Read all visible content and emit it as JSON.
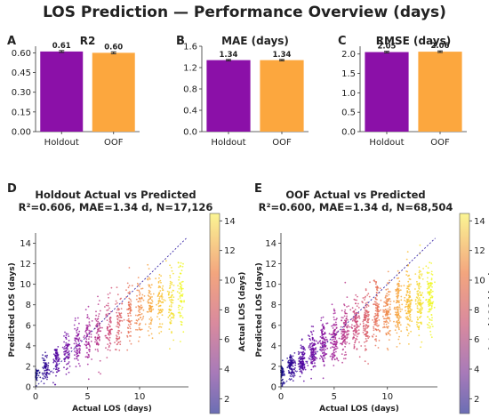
{
  "title": "LOS Prediction — Performance Overview (days)",
  "chart_data": [
    {
      "panel": "A",
      "type": "bar",
      "title": "R2",
      "categories": [
        "Holdout",
        "OOF"
      ],
      "values": [
        0.61,
        0.6
      ],
      "value_labels": [
        "0.61",
        "0.60"
      ],
      "error": [
        0.007,
        0.007
      ],
      "colors": [
        "#8b10a8",
        "#fca73e"
      ],
      "ylim": [
        0,
        0.65
      ],
      "yticks": [
        0.0,
        0.15,
        0.3,
        0.45,
        0.6
      ],
      "ytick_labels": [
        "0.00",
        "0.15",
        "0.30",
        "0.45",
        "0.60"
      ]
    },
    {
      "panel": "B",
      "type": "bar",
      "title": "MAE (days)",
      "categories": [
        "Holdout",
        "OOF"
      ],
      "values": [
        1.34,
        1.34
      ],
      "value_labels": [
        "1.34",
        "1.34"
      ],
      "error": [
        0.012,
        0.012
      ],
      "colors": [
        "#8b10a8",
        "#fca73e"
      ],
      "ylim": [
        0,
        1.6
      ],
      "yticks": [
        0.0,
        0.4,
        0.8,
        1.2,
        1.6
      ],
      "ytick_labels": [
        "0.0",
        "0.4",
        "0.8",
        "1.2",
        "1.6"
      ]
    },
    {
      "panel": "C",
      "type": "bar",
      "title": "RMSE (days)",
      "categories": [
        "Holdout",
        "OOF"
      ],
      "values": [
        2.05,
        2.06
      ],
      "value_labels": [
        "2.05",
        "2.06"
      ],
      "error": [
        0.02,
        0.02
      ],
      "colors": [
        "#8b10a8",
        "#fca73e"
      ],
      "ylim": [
        0,
        2.2
      ],
      "yticks": [
        0.0,
        0.5,
        1.0,
        1.5,
        2.0
      ],
      "ytick_labels": [
        "0.0",
        "0.5",
        "1.0",
        "1.5",
        "2.0"
      ]
    },
    {
      "panel": "D",
      "type": "scatter",
      "title": "Holdout Actual vs Predicted",
      "subtitle": "R²=0.606,  MAE=1.34 d,  N=17,126",
      "xlabel": "Actual LOS (days)",
      "ylabel": "Predicted LOS (days)",
      "xlim": [
        0,
        14.7
      ],
      "ylim": [
        0,
        15
      ],
      "xticks": [
        0,
        5,
        10
      ],
      "yticks": [
        0,
        2,
        4,
        6,
        8,
        10,
        12,
        14
      ],
      "reference_line": "y = x",
      "colorbar": {
        "label": "Actual LOS (days)",
        "range": [
          1,
          14.5
        ],
        "ticks": [
          2,
          4,
          6,
          8,
          10,
          12,
          14
        ]
      },
      "n_points": 17126,
      "point_summary": [
        {
          "x": 0,
          "y_center": 1.2,
          "y_spread": 0.8
        },
        {
          "x": 1,
          "y_center": 2.0,
          "y_spread": 1.1
        },
        {
          "x": 2,
          "y_center": 2.6,
          "y_spread": 1.4
        },
        {
          "x": 3,
          "y_center": 3.4,
          "y_spread": 1.7
        },
        {
          "x": 4,
          "y_center": 4.1,
          "y_spread": 2.0
        },
        {
          "x": 5,
          "y_center": 4.8,
          "y_spread": 2.2
        },
        {
          "x": 6,
          "y_center": 5.5,
          "y_spread": 2.4
        },
        {
          "x": 7,
          "y_center": 6.0,
          "y_spread": 2.6
        },
        {
          "x": 8,
          "y_center": 6.6,
          "y_spread": 2.7
        },
        {
          "x": 9,
          "y_center": 7.1,
          "y_spread": 2.8
        },
        {
          "x": 10,
          "y_center": 7.5,
          "y_spread": 2.9
        },
        {
          "x": 11,
          "y_center": 7.9,
          "y_spread": 2.9
        },
        {
          "x": 12,
          "y_center": 8.2,
          "y_spread": 3.0
        },
        {
          "x": 13,
          "y_center": 8.5,
          "y_spread": 3.0
        },
        {
          "x": 14,
          "y_center": 8.8,
          "y_spread": 3.0
        }
      ]
    },
    {
      "panel": "E",
      "type": "scatter",
      "title": "OOF Actual vs Predicted",
      "subtitle": "R²=0.600,  MAE=1.34 d,  N=68,504",
      "xlabel": "Actual LOS (days)",
      "ylabel": "Predicted LOS (days)",
      "xlim": [
        0,
        14.7
      ],
      "ylim": [
        0,
        15
      ],
      "xticks": [
        0,
        5,
        10
      ],
      "yticks": [
        0,
        2,
        4,
        6,
        8,
        10,
        12,
        14
      ],
      "reference_line": "y = x",
      "colorbar": {
        "label": "Actual LOS (days)",
        "range": [
          1,
          14.5
        ],
        "ticks": [
          2,
          4,
          6,
          8,
          10,
          12,
          14
        ]
      },
      "n_points": 68504,
      "point_summary": [
        {
          "x": 0,
          "y_center": 1.2,
          "y_spread": 0.8
        },
        {
          "x": 1,
          "y_center": 2.0,
          "y_spread": 1.1
        },
        {
          "x": 2,
          "y_center": 2.6,
          "y_spread": 1.4
        },
        {
          "x": 3,
          "y_center": 3.4,
          "y_spread": 1.7
        },
        {
          "x": 4,
          "y_center": 4.1,
          "y_spread": 2.0
        },
        {
          "x": 5,
          "y_center": 4.8,
          "y_spread": 2.2
        },
        {
          "x": 6,
          "y_center": 5.5,
          "y_spread": 2.4
        },
        {
          "x": 7,
          "y_center": 6.0,
          "y_spread": 2.6
        },
        {
          "x": 8,
          "y_center": 6.6,
          "y_spread": 2.7
        },
        {
          "x": 9,
          "y_center": 7.1,
          "y_spread": 2.8
        },
        {
          "x": 10,
          "y_center": 7.5,
          "y_spread": 2.9
        },
        {
          "x": 11,
          "y_center": 7.9,
          "y_spread": 2.9
        },
        {
          "x": 12,
          "y_center": 8.2,
          "y_spread": 3.0
        },
        {
          "x": 13,
          "y_center": 8.5,
          "y_spread": 3.0
        },
        {
          "x": 14,
          "y_center": 8.8,
          "y_spread": 3.0
        }
      ]
    }
  ]
}
